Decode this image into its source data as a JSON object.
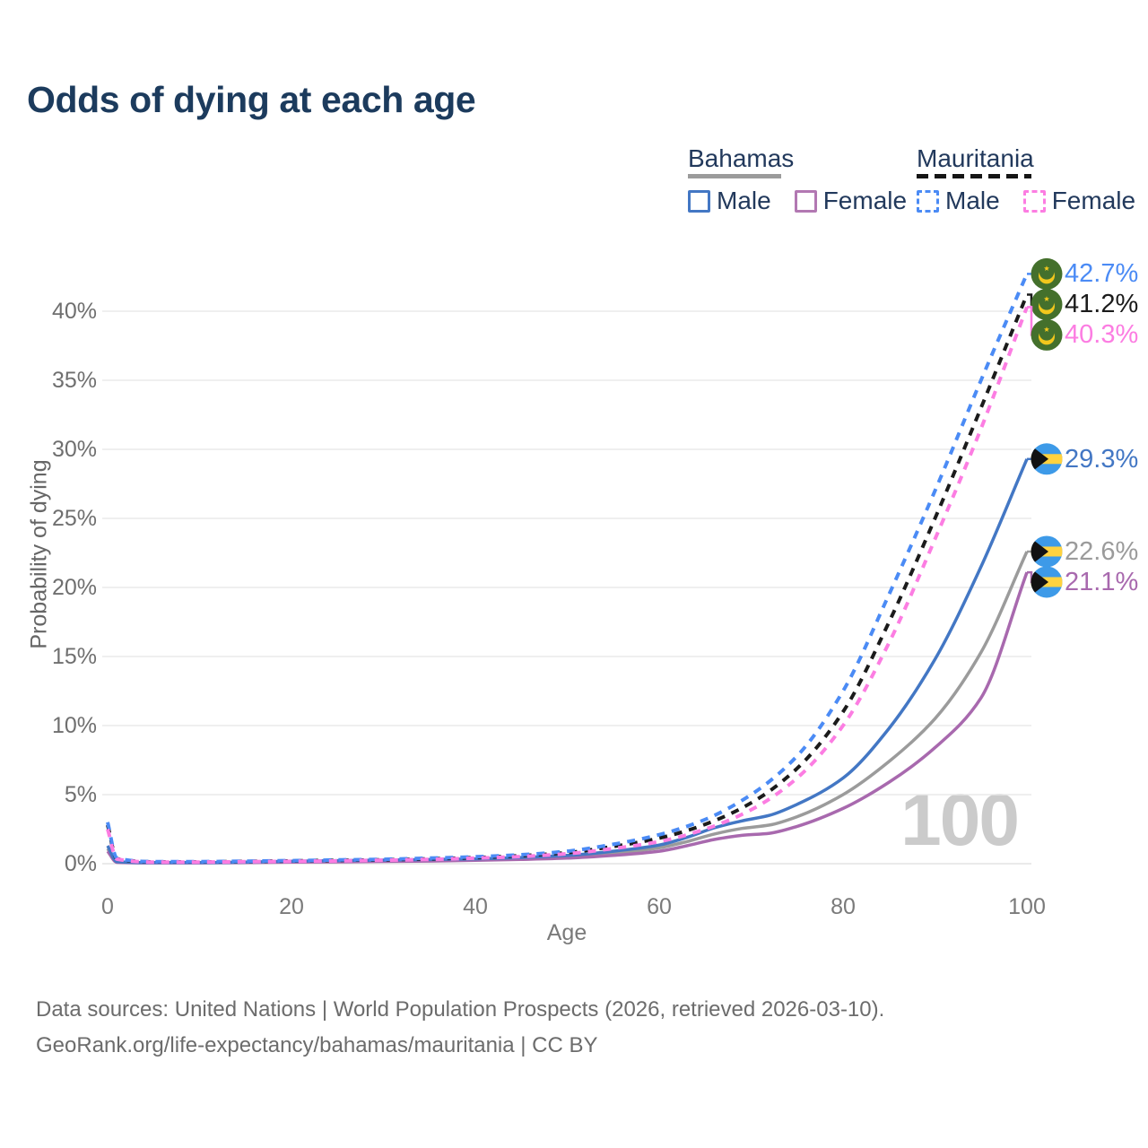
{
  "title": "Odds of dying at each age",
  "legend": {
    "groups": [
      {
        "country": "Bahamas",
        "style": "solid",
        "underline_color": "#9b9b9b",
        "items": [
          {
            "label": "Male",
            "color": "#4377c4"
          },
          {
            "label": "Female",
            "color": "#b278b2"
          }
        ]
      },
      {
        "country": "Mauritania",
        "style": "dashed",
        "underline_color": "#151515",
        "items": [
          {
            "label": "Male",
            "color": "#4b8bf5"
          },
          {
            "label": "Female",
            "color": "#fc7de2"
          }
        ]
      }
    ]
  },
  "icons": {
    "bahamas_flag": {
      "blue": "#3d9ae8",
      "yellow": "#ffd23f",
      "black": "#121212"
    },
    "mauritania_flag": {
      "green": "#44702c",
      "gold": "#f2c71d"
    }
  },
  "chart_data": {
    "type": "line",
    "title": "Odds of dying at each age",
    "xlabel": "Age",
    "ylabel": "Probability of dying",
    "watermark": "100",
    "grid": "horizontal",
    "legend_position": "top-right",
    "xlim": [
      0,
      100
    ],
    "ylim": [
      0,
      44
    ],
    "x_ticks": [
      0,
      20,
      40,
      60,
      80,
      100
    ],
    "y_ticks": [
      {
        "value": 0,
        "label": "0%"
      },
      {
        "value": 5,
        "label": "5%"
      },
      {
        "value": 10,
        "label": "10%"
      },
      {
        "value": 15,
        "label": "15%"
      },
      {
        "value": 20,
        "label": "20%"
      },
      {
        "value": 25,
        "label": "25%"
      },
      {
        "value": 30,
        "label": "30%"
      },
      {
        "value": 35,
        "label": "35%"
      },
      {
        "value": 40,
        "label": "40%"
      }
    ],
    "series": [
      {
        "id": "bahamas-all",
        "country": "Bahamas",
        "sex": "All",
        "color": "#9b9b9b",
        "dash": false,
        "flag": "bahamas",
        "end_value": 22.6,
        "end_label": "22.6%",
        "points": [
          [
            0,
            1.1
          ],
          [
            1,
            0.12
          ],
          [
            5,
            0.07
          ],
          [
            10,
            0.07
          ],
          [
            15,
            0.1
          ],
          [
            20,
            0.14
          ],
          [
            25,
            0.17
          ],
          [
            30,
            0.2
          ],
          [
            35,
            0.24
          ],
          [
            40,
            0.29
          ],
          [
            45,
            0.38
          ],
          [
            50,
            0.5
          ],
          [
            55,
            0.75
          ],
          [
            60,
            1.15
          ],
          [
            63,
            1.6
          ],
          [
            66,
            2.15
          ],
          [
            69,
            2.55
          ],
          [
            72,
            2.8
          ],
          [
            75,
            3.4
          ],
          [
            80,
            5.0
          ],
          [
            85,
            7.4
          ],
          [
            90,
            10.5
          ],
          [
            95,
            15.3
          ],
          [
            100,
            22.6
          ]
        ]
      },
      {
        "id": "bahamas-female",
        "country": "Bahamas",
        "sex": "Female",
        "color": "#a869ae",
        "dash": false,
        "flag": "bahamas",
        "end_value": 21.1,
        "end_label": "21.1%",
        "points": [
          [
            0,
            0.9
          ],
          [
            1,
            0.1
          ],
          [
            5,
            0.06
          ],
          [
            10,
            0.06
          ],
          [
            15,
            0.08
          ],
          [
            20,
            0.11
          ],
          [
            25,
            0.13
          ],
          [
            30,
            0.16
          ],
          [
            35,
            0.19
          ],
          [
            40,
            0.24
          ],
          [
            45,
            0.31
          ],
          [
            50,
            0.4
          ],
          [
            55,
            0.6
          ],
          [
            60,
            0.9
          ],
          [
            63,
            1.3
          ],
          [
            66,
            1.75
          ],
          [
            69,
            2.05
          ],
          [
            72,
            2.2
          ],
          [
            75,
            2.7
          ],
          [
            80,
            4.0
          ],
          [
            85,
            5.9
          ],
          [
            90,
            8.4
          ],
          [
            95,
            12.0
          ],
          [
            100,
            21.1
          ]
        ]
      },
      {
        "id": "bahamas-male",
        "country": "Bahamas",
        "sex": "Male",
        "color": "#4377c4",
        "dash": false,
        "flag": "bahamas",
        "end_value": 29.3,
        "end_label": "29.3%",
        "points": [
          [
            0,
            1.3
          ],
          [
            1,
            0.15
          ],
          [
            5,
            0.08
          ],
          [
            10,
            0.08
          ],
          [
            15,
            0.12
          ],
          [
            20,
            0.18
          ],
          [
            25,
            0.22
          ],
          [
            30,
            0.26
          ],
          [
            35,
            0.3
          ],
          [
            40,
            0.35
          ],
          [
            45,
            0.45
          ],
          [
            50,
            0.6
          ],
          [
            55,
            0.9
          ],
          [
            60,
            1.35
          ],
          [
            63,
            1.9
          ],
          [
            66,
            2.6
          ],
          [
            69,
            3.1
          ],
          [
            72,
            3.5
          ],
          [
            75,
            4.3
          ],
          [
            80,
            6.2
          ],
          [
            85,
            9.8
          ],
          [
            90,
            14.8
          ],
          [
            95,
            21.5
          ],
          [
            100,
            29.3
          ]
        ]
      },
      {
        "id": "mauritania-all",
        "country": "Mauritania",
        "sex": "All",
        "color": "#1b1b1b",
        "dash": true,
        "flag": "mauritania",
        "end_value": 41.2,
        "end_label": "41.2%",
        "points": [
          [
            0,
            2.8
          ],
          [
            1,
            0.36
          ],
          [
            5,
            0.13
          ],
          [
            10,
            0.13
          ],
          [
            15,
            0.16
          ],
          [
            20,
            0.2
          ],
          [
            25,
            0.24
          ],
          [
            30,
            0.28
          ],
          [
            35,
            0.35
          ],
          [
            40,
            0.44
          ],
          [
            45,
            0.58
          ],
          [
            50,
            0.8
          ],
          [
            55,
            1.25
          ],
          [
            60,
            1.85
          ],
          [
            65,
            2.85
          ],
          [
            70,
            4.4
          ],
          [
            75,
            6.9
          ],
          [
            80,
            11.0
          ],
          [
            85,
            17.5
          ],
          [
            90,
            25.0
          ],
          [
            95,
            33.0
          ],
          [
            100,
            41.2
          ]
        ]
      },
      {
        "id": "mauritania-male",
        "country": "Mauritania",
        "sex": "Male",
        "color": "#4b8bf5",
        "dash": true,
        "flag": "mauritania",
        "end_value": 42.7,
        "end_label": "42.7%",
        "points": [
          [
            0,
            3.0
          ],
          [
            1,
            0.4
          ],
          [
            5,
            0.15
          ],
          [
            10,
            0.15
          ],
          [
            15,
            0.18
          ],
          [
            20,
            0.22
          ],
          [
            25,
            0.27
          ],
          [
            30,
            0.32
          ],
          [
            35,
            0.4
          ],
          [
            40,
            0.5
          ],
          [
            45,
            0.65
          ],
          [
            50,
            0.9
          ],
          [
            55,
            1.4
          ],
          [
            60,
            2.1
          ],
          [
            65,
            3.2
          ],
          [
            70,
            5.0
          ],
          [
            75,
            7.8
          ],
          [
            80,
            12.5
          ],
          [
            85,
            19.5
          ],
          [
            90,
            27.0
          ],
          [
            95,
            35.0
          ],
          [
            100,
            42.7
          ]
        ]
      },
      {
        "id": "mauritania-female",
        "country": "Mauritania",
        "sex": "Female",
        "color": "#fc7de2",
        "dash": true,
        "flag": "mauritania",
        "end_value": 40.3,
        "end_label": "40.3%",
        "points": [
          [
            0,
            2.5
          ],
          [
            1,
            0.33
          ],
          [
            5,
            0.12
          ],
          [
            10,
            0.12
          ],
          [
            15,
            0.14
          ],
          [
            20,
            0.17
          ],
          [
            25,
            0.2
          ],
          [
            30,
            0.25
          ],
          [
            35,
            0.31
          ],
          [
            40,
            0.4
          ],
          [
            45,
            0.52
          ],
          [
            50,
            0.72
          ],
          [
            55,
            1.1
          ],
          [
            60,
            1.6
          ],
          [
            65,
            2.5
          ],
          [
            70,
            3.9
          ],
          [
            75,
            6.2
          ],
          [
            80,
            10.0
          ],
          [
            85,
            16.0
          ],
          [
            90,
            23.5
          ],
          [
            95,
            31.5
          ],
          [
            100,
            40.3
          ]
        ]
      }
    ]
  },
  "footer": {
    "line1": "Data sources: United Nations | World Population Prospects (2026, retrieved 2026-03-10).",
    "line2": "GeoRank.org/life-expectancy/bahamas/mauritania | CC BY"
  }
}
